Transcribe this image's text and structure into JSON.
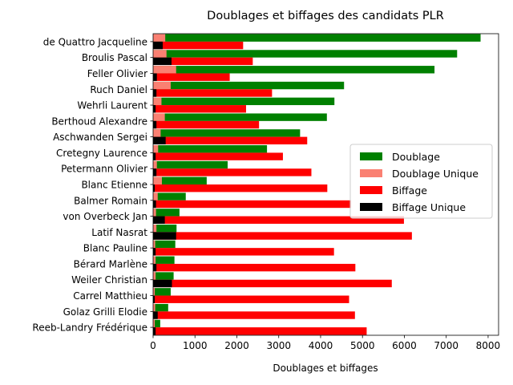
{
  "chart_data": {
    "type": "bar",
    "orientation": "horizontal",
    "title": "Doublages et biffages des candidats PLR",
    "xlabel": "Doublages et biffages",
    "ylabel": "",
    "xlim": [
      0,
      8250
    ],
    "xticks": [
      0,
      1000,
      2000,
      3000,
      4000,
      5000,
      6000,
      7000,
      8000
    ],
    "grid": false,
    "legend_position": "center-right",
    "categories": [
      "de Quattro Jacqueline",
      "Broulis Pascal",
      "Feller Olivier",
      "Ruch Daniel",
      "Wehrli Laurent",
      "Berthoud Alexandre",
      "Aschwanden Sergei",
      "Cretegny Laurence",
      "Petermann Olivier",
      "Blanc Etienne",
      "Balmer Romain",
      "von Overbeck Jan",
      "Latif Nasrat",
      "Blanc Pauline",
      "Bérard Marlène",
      "Weiler Christian",
      "Carrel Matthieu",
      "Golaz Grilli Elodie",
      "Reeb-Landry Frédérique"
    ],
    "series": [
      {
        "name": "Doublage",
        "color": "#008000",
        "values": [
          7820,
          7260,
          6720,
          4560,
          4330,
          4150,
          3510,
          2720,
          1780,
          1280,
          780,
          630,
          560,
          530,
          510,
          490,
          420,
          360,
          170
        ]
      },
      {
        "name": "Doublage Unique",
        "color": "#fa8072",
        "values": [
          290,
          320,
          550,
          420,
          200,
          280,
          180,
          120,
          90,
          210,
          110,
          70,
          80,
          50,
          60,
          60,
          40,
          50,
          40
        ]
      },
      {
        "name": "Biffage",
        "color": "#ff0000",
        "values": [
          2150,
          2380,
          1830,
          2840,
          2220,
          2530,
          3680,
          3100,
          3780,
          4160,
          4730,
          5990,
          6180,
          4320,
          4830,
          5700,
          4680,
          4820,
          5100
        ]
      },
      {
        "name": "Biffage Unique",
        "color": "#000000",
        "values": [
          230,
          440,
          90,
          80,
          60,
          80,
          300,
          60,
          80,
          40,
          70,
          280,
          550,
          60,
          80,
          450,
          40,
          110,
          60
        ]
      }
    ]
  }
}
